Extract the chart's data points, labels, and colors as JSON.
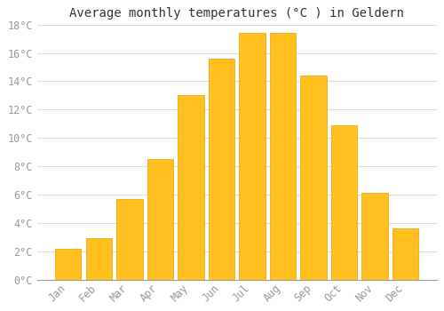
{
  "title": "Average monthly temperatures (°C ) in Geldern",
  "months": [
    "Jan",
    "Feb",
    "Mar",
    "Apr",
    "May",
    "Jun",
    "Jul",
    "Aug",
    "Sep",
    "Oct",
    "Nov",
    "Dec"
  ],
  "values": [
    2.2,
    2.9,
    5.7,
    8.5,
    13.0,
    15.6,
    17.4,
    17.4,
    14.4,
    10.9,
    6.1,
    3.6
  ],
  "bar_color": "#FFC020",
  "bar_edge_color": "#E8A000",
  "background_color": "#FFFFFF",
  "grid_color": "#DDDDDD",
  "text_color": "#999999",
  "title_color": "#333333",
  "ylim": [
    0,
    18
  ],
  "yticks": [
    0,
    2,
    4,
    6,
    8,
    10,
    12,
    14,
    16,
    18
  ],
  "title_fontsize": 10,
  "tick_fontsize": 8.5,
  "bar_width": 0.85
}
